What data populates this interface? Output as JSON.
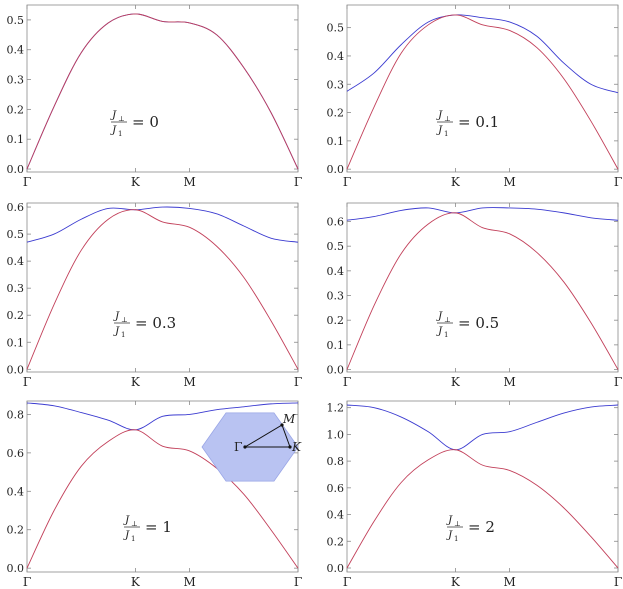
{
  "chart_data": [
    {
      "type": "line",
      "x_ticks": [
        "Γ",
        "K",
        "M",
        "Γ"
      ],
      "x_positions": [
        0,
        1,
        1.5,
        2.5
      ],
      "ylim": [
        -0.01,
        0.55
      ],
      "y_ticks": [
        "0.0",
        "0.1",
        "0.2",
        "0.3",
        "0.4",
        "0.5"
      ],
      "annotation": {
        "numerator": "J",
        "numerator_sub": "⊥",
        "denominator": "J",
        "denominator_sub": "1",
        "value": "= 0"
      },
      "series": [
        {
          "color": "#3b3bd0",
          "points": [
            [
              0,
              0
            ],
            [
              0.25,
              0.21
            ],
            [
              0.5,
              0.39
            ],
            [
              0.75,
              0.49
            ],
            [
              1,
              0.52
            ],
            [
              1.25,
              0.495
            ],
            [
              1.5,
              0.49
            ],
            [
              1.75,
              0.45
            ],
            [
              2,
              0.34
            ],
            [
              2.25,
              0.19
            ],
            [
              2.5,
              0
            ]
          ]
        },
        {
          "color": "#c2405a",
          "points": [
            [
              0,
              0
            ],
            [
              0.25,
              0.21
            ],
            [
              0.5,
              0.39
            ],
            [
              0.75,
              0.49
            ],
            [
              1,
              0.52
            ],
            [
              1.25,
              0.495
            ],
            [
              1.5,
              0.49
            ],
            [
              1.75,
              0.45
            ],
            [
              2,
              0.34
            ],
            [
              2.25,
              0.19
            ],
            [
              2.5,
              0
            ]
          ]
        }
      ]
    },
    {
      "type": "line",
      "x_ticks": [
        "Γ",
        "K",
        "M",
        "Γ"
      ],
      "x_positions": [
        0,
        1,
        1.5,
        2.5
      ],
      "ylim": [
        -0.01,
        0.58
      ],
      "y_ticks": [
        "0.0",
        "0.1",
        "0.2",
        "0.3",
        "0.4",
        "0.5"
      ],
      "annotation": {
        "numerator": "J",
        "numerator_sub": "⊥",
        "denominator": "J",
        "denominator_sub": "1",
        "value": "= 0.1"
      },
      "series": [
        {
          "color": "#3b3bd0",
          "points": [
            [
              0,
              0.275
            ],
            [
              0.25,
              0.34
            ],
            [
              0.5,
              0.44
            ],
            [
              0.75,
              0.52
            ],
            [
              1,
              0.545
            ],
            [
              1.25,
              0.535
            ],
            [
              1.5,
              0.52
            ],
            [
              1.75,
              0.47
            ],
            [
              2,
              0.375
            ],
            [
              2.25,
              0.3
            ],
            [
              2.5,
              0.27
            ]
          ]
        },
        {
          "color": "#c2405a",
          "points": [
            [
              0,
              0
            ],
            [
              0.25,
              0.22
            ],
            [
              0.5,
              0.41
            ],
            [
              0.75,
              0.51
            ],
            [
              1,
              0.545
            ],
            [
              1.25,
              0.51
            ],
            [
              1.5,
              0.49
            ],
            [
              1.75,
              0.43
            ],
            [
              2,
              0.32
            ],
            [
              2.25,
              0.17
            ],
            [
              2.5,
              0
            ]
          ]
        }
      ]
    },
    {
      "type": "line",
      "x_ticks": [
        "Γ",
        "K",
        "M",
        "Γ"
      ],
      "x_positions": [
        0,
        1,
        1.5,
        2.5
      ],
      "ylim": [
        -0.01,
        0.615
      ],
      "y_ticks": [
        "0.0",
        "0.1",
        "0.2",
        "0.3",
        "0.4",
        "0.5",
        "0.6"
      ],
      "annotation": {
        "numerator": "J",
        "numerator_sub": "⊥",
        "denominator": "J",
        "denominator_sub": "1",
        "value": "= 0.3"
      },
      "series": [
        {
          "color": "#3b3bd0",
          "points": [
            [
              0,
              0.47
            ],
            [
              0.25,
              0.5
            ],
            [
              0.5,
              0.555
            ],
            [
              0.75,
              0.595
            ],
            [
              1,
              0.59
            ],
            [
              1.25,
              0.6
            ],
            [
              1.5,
              0.595
            ],
            [
              1.75,
              0.575
            ],
            [
              2,
              0.53
            ],
            [
              2.25,
              0.485
            ],
            [
              2.5,
              0.47
            ]
          ]
        },
        {
          "color": "#c2405a",
          "points": [
            [
              0,
              0
            ],
            [
              0.25,
              0.24
            ],
            [
              0.5,
              0.44
            ],
            [
              0.75,
              0.555
            ],
            [
              1,
              0.59
            ],
            [
              1.25,
              0.545
            ],
            [
              1.5,
              0.525
            ],
            [
              1.75,
              0.455
            ],
            [
              2,
              0.34
            ],
            [
              2.25,
              0.18
            ],
            [
              2.5,
              0
            ]
          ]
        }
      ]
    },
    {
      "type": "line",
      "x_ticks": [
        "Γ",
        "K",
        "M",
        "Γ"
      ],
      "x_positions": [
        0,
        1,
        1.5,
        2.5
      ],
      "ylim": [
        -0.01,
        0.675
      ],
      "y_ticks": [
        "0.0",
        "0.1",
        "0.2",
        "0.3",
        "0.4",
        "0.5",
        "0.6"
      ],
      "annotation": {
        "numerator": "J",
        "numerator_sub": "⊥",
        "denominator": "J",
        "denominator_sub": "1",
        "value": "= 0.5"
      },
      "series": [
        {
          "color": "#3b3bd0",
          "points": [
            [
              0,
              0.605
            ],
            [
              0.25,
              0.62
            ],
            [
              0.5,
              0.645
            ],
            [
              0.75,
              0.655
            ],
            [
              1,
              0.635
            ],
            [
              1.25,
              0.655
            ],
            [
              1.5,
              0.655
            ],
            [
              1.75,
              0.65
            ],
            [
              2,
              0.635
            ],
            [
              2.25,
              0.615
            ],
            [
              2.5,
              0.605
            ]
          ]
        },
        {
          "color": "#c2405a",
          "points": [
            [
              0,
              0
            ],
            [
              0.25,
              0.26
            ],
            [
              0.5,
              0.47
            ],
            [
              0.75,
              0.59
            ],
            [
              1,
              0.635
            ],
            [
              1.25,
              0.575
            ],
            [
              1.5,
              0.55
            ],
            [
              1.75,
              0.475
            ],
            [
              2,
              0.355
            ],
            [
              2.25,
              0.19
            ],
            [
              2.5,
              0
            ]
          ]
        }
      ]
    },
    {
      "type": "line",
      "x_ticks": [
        "Γ",
        "K",
        "M",
        "Γ"
      ],
      "x_positions": [
        0,
        1,
        1.5,
        2.5
      ],
      "ylim": [
        -0.02,
        0.87
      ],
      "y_ticks": [
        "0.0",
        "0.2",
        "0.4",
        "0.6",
        "0.8"
      ],
      "annotation": {
        "numerator": "J",
        "numerator_sub": "⊥",
        "denominator": "J",
        "denominator_sub": "1",
        "value": "= 1"
      },
      "inset": {
        "type": "hexagon",
        "labels": [
          "Γ",
          "M",
          "K"
        ]
      },
      "series": [
        {
          "color": "#3b3bd0",
          "points": [
            [
              0,
              0.86
            ],
            [
              0.25,
              0.845
            ],
            [
              0.5,
              0.81
            ],
            [
              0.75,
              0.77
            ],
            [
              1,
              0.72
            ],
            [
              1.25,
              0.79
            ],
            [
              1.5,
              0.8
            ],
            [
              1.75,
              0.825
            ],
            [
              2,
              0.84
            ],
            [
              2.25,
              0.855
            ],
            [
              2.5,
              0.86
            ]
          ]
        },
        {
          "color": "#c2405a",
          "points": [
            [
              0,
              0
            ],
            [
              0.25,
              0.3
            ],
            [
              0.5,
              0.53
            ],
            [
              0.75,
              0.66
            ],
            [
              1,
              0.72
            ],
            [
              1.25,
              0.635
            ],
            [
              1.5,
              0.61
            ],
            [
              1.75,
              0.52
            ],
            [
              2,
              0.385
            ],
            [
              2.25,
              0.2
            ],
            [
              2.5,
              0
            ]
          ]
        }
      ]
    },
    {
      "type": "line",
      "x_ticks": [
        "Γ",
        "K",
        "M",
        "Γ"
      ],
      "x_positions": [
        0,
        1,
        1.5,
        2.5
      ],
      "ylim": [
        -0.03,
        1.25
      ],
      "y_ticks": [
        "0.0",
        "0.2",
        "0.4",
        "0.6",
        "0.8",
        "1.0",
        "1.2"
      ],
      "annotation": {
        "numerator": "J",
        "numerator_sub": "⊥",
        "denominator": "J",
        "denominator_sub": "1",
        "value": "= 2"
      },
      "series": [
        {
          "color": "#3b3bd0",
          "points": [
            [
              0,
              1.22
            ],
            [
              0.25,
              1.2
            ],
            [
              0.5,
              1.13
            ],
            [
              0.75,
              1.02
            ],
            [
              1,
              0.885
            ],
            [
              1.25,
              1.0
            ],
            [
              1.5,
              1.02
            ],
            [
              1.75,
              1.09
            ],
            [
              2,
              1.16
            ],
            [
              2.25,
              1.205
            ],
            [
              2.5,
              1.22
            ]
          ]
        },
        {
          "color": "#c2405a",
          "points": [
            [
              0,
              0
            ],
            [
              0.25,
              0.35
            ],
            [
              0.5,
              0.64
            ],
            [
              0.75,
              0.81
            ],
            [
              1,
              0.885
            ],
            [
              1.25,
              0.77
            ],
            [
              1.5,
              0.73
            ],
            [
              1.75,
              0.62
            ],
            [
              2,
              0.45
            ],
            [
              2.25,
              0.235
            ],
            [
              2.5,
              0
            ]
          ]
        }
      ]
    }
  ]
}
